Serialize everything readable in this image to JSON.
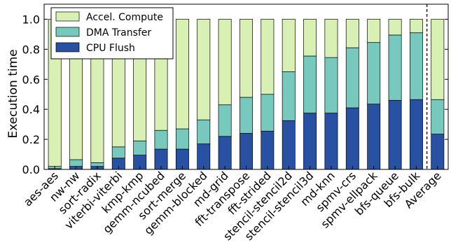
{
  "chart_data": {
    "type": "bar",
    "stacked": true,
    "ylabel": "Execution time",
    "xlabel": "",
    "ylim": [
      0,
      1.1
    ],
    "yticks": [
      "0.0",
      "0.2",
      "0.4",
      "0.6",
      "0.8",
      "1.0"
    ],
    "ytick_values": [
      0,
      0.2,
      0.4,
      0.6,
      0.8,
      1.0
    ],
    "legend_position": "top-left",
    "grid": false,
    "separator_before_last": true,
    "categories": [
      "aes-aes",
      "nw-nw",
      "sort-radix",
      "viterbi-viterbi",
      "kmp-kmp",
      "gemm-ncubed",
      "sort-merge",
      "gemm-blocked",
      "md-grid",
      "fft-transpose",
      "fft-strided",
      "stencil-stencil2d",
      "stencil-stencil3d",
      "md-knn",
      "spmv-crs",
      "spmv-ellpack",
      "bfs-queue",
      "bfs-bulk",
      "Average"
    ],
    "series": [
      {
        "name": "CPU Flush",
        "color": "#2851a3",
        "values": [
          0.005,
          0.02,
          0.02,
          0.075,
          0.095,
          0.135,
          0.135,
          0.17,
          0.22,
          0.24,
          0.255,
          0.325,
          0.375,
          0.375,
          0.41,
          0.435,
          0.46,
          0.465,
          0.235
        ]
      },
      {
        "name": "DMA Transfer",
        "color": "#77c9be",
        "values": [
          0.015,
          0.045,
          0.025,
          0.075,
          0.095,
          0.125,
          0.135,
          0.16,
          0.21,
          0.24,
          0.245,
          0.325,
          0.38,
          0.37,
          0.4,
          0.41,
          0.435,
          0.445,
          0.23
        ]
      },
      {
        "name": "Accel. Compute",
        "color": "#d9f0b4",
        "values": [
          0.98,
          0.935,
          0.955,
          0.85,
          0.81,
          0.74,
          0.73,
          0.67,
          0.57,
          0.52,
          0.5,
          0.35,
          0.245,
          0.255,
          0.19,
          0.155,
          0.105,
          0.09,
          0.535
        ]
      }
    ],
    "legend_order": [
      "Accel. Compute",
      "DMA Transfer",
      "CPU Flush"
    ]
  }
}
